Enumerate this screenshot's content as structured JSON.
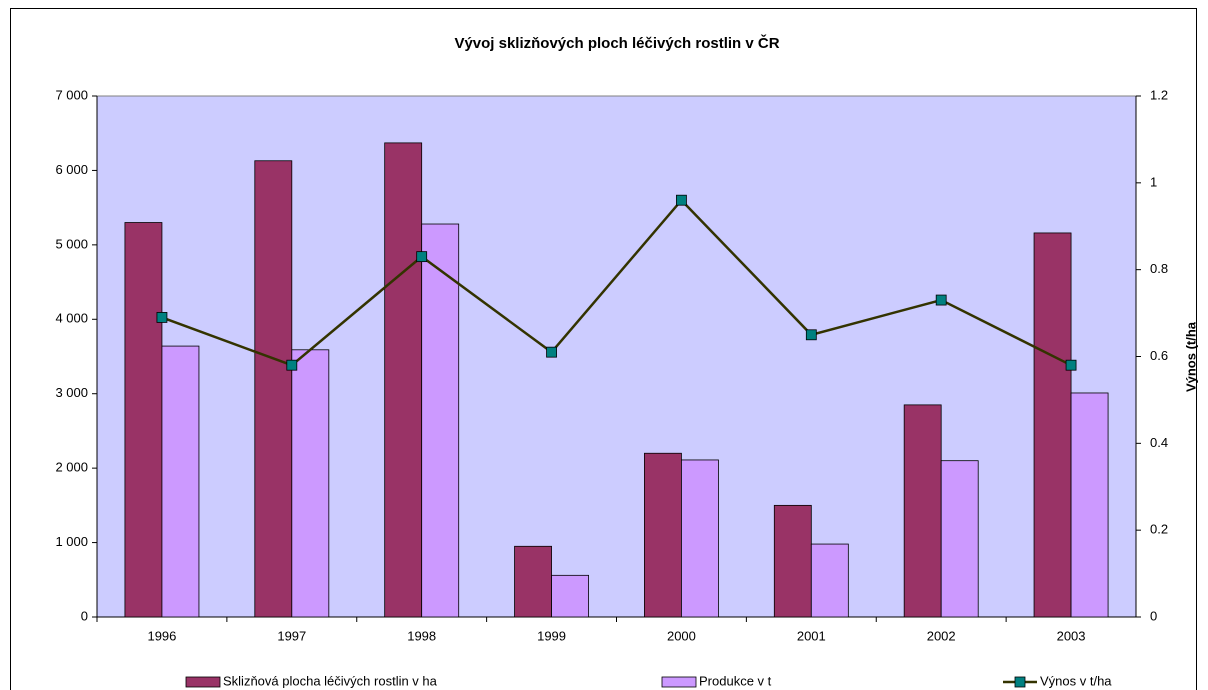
{
  "chart_data": {
    "type": "bar",
    "title": "Vývoj sklizňových ploch léčivých rostlin v ČR",
    "y2_label": "Výnos (t/ha",
    "categories": [
      "1996",
      "1997",
      "1998",
      "1999",
      "2000",
      "2001",
      "2002",
      "2003"
    ],
    "series": [
      {
        "name": "Sklizňová plocha léčivých rostlin v ha",
        "type": "bar",
        "color": "#993366",
        "values": [
          5300,
          6130,
          6370,
          950,
          2200,
          1500,
          2850,
          5160
        ]
      },
      {
        "name": "Produkce v t",
        "type": "bar",
        "color": "#cc99ff",
        "values": [
          3640,
          3590,
          5280,
          560,
          2110,
          980,
          2100,
          3010
        ]
      },
      {
        "name": "Výnos v t/ha",
        "type": "line",
        "axis": "y2",
        "color": "#333300",
        "marker_color": "#008080",
        "values": [
          0.69,
          0.58,
          0.83,
          0.61,
          0.96,
          0.65,
          0.73,
          0.58
        ]
      }
    ],
    "ylim": [
      0,
      7000
    ],
    "yticks": [
      0,
      {
        "value": 1000,
        "label": "1 000"
      },
      {
        "value": 2000,
        "label": "2 000"
      },
      {
        "value": 3000,
        "label": "3 000"
      },
      {
        "value": 4000,
        "label": "4 000"
      },
      {
        "value": 5000,
        "label": "5 000"
      },
      {
        "value": 6000,
        "label": "6 000"
      },
      {
        "value": 7000,
        "label": "7 000"
      }
    ],
    "y2lim": [
      0,
      1.2
    ],
    "y2ticks": [
      0,
      0.2,
      0.4,
      0.6,
      0.8,
      1,
      1.2
    ],
    "plot_background": "#ccccff",
    "legend": "bottom"
  }
}
